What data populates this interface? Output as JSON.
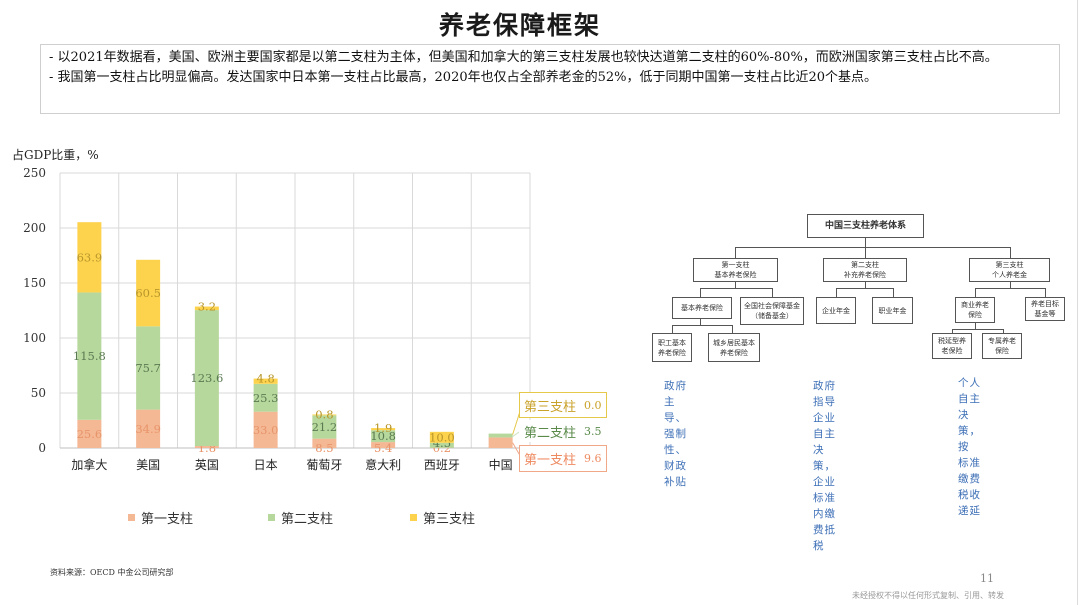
{
  "slide": {
    "title": "养老保障框架",
    "bullets": [
      "- 以2021年数据看，美国、欧洲主要国家都是以第二支柱为主体，但美国和加拿大的第三支柱发展也较快达道第二支柱的60%-80%，而欧洲国家第三支柱占比不高。",
      "- 我国第一支柱占比明显偏高。发达国家中日本第一支柱占比最高，2020年也仅占全部养老金的52%，低于同期中国第一支柱占比近20个基点。"
    ],
    "source": "资料来源：OECD 中金公司研究部",
    "page_number": "11",
    "copyright": "未经授权不得以任何形式复制、引用、转发"
  },
  "chart_data": {
    "type": "bar",
    "stacked": true,
    "title": "",
    "ylabel": "占GDP比重，%",
    "xlabel": "",
    "ylim": [
      0,
      250
    ],
    "yticks": [
      0,
      50,
      100,
      150,
      200,
      250
    ],
    "grid": true,
    "legend_position": "bottom",
    "categories": [
      "加拿大",
      "美国",
      "英国",
      "日本",
      "葡萄牙",
      "意大利",
      "西班牙",
      "中国"
    ],
    "series": [
      {
        "name": "第一支柱",
        "color": "#f4b894",
        "label_color": "#e8946a",
        "values": [
          25.6,
          34.9,
          1.8,
          33.0,
          8.5,
          5.4,
          0.2,
          9.6
        ]
      },
      {
        "name": "第二支柱",
        "color": "#b7d89c",
        "label_color": "#5a7a52",
        "values": [
          115.8,
          75.7,
          123.6,
          25.3,
          21.2,
          10.8,
          4.5,
          3.5
        ]
      },
      {
        "name": "第三支柱",
        "color": "#fdd34e",
        "label_color": "#b8962a",
        "values": [
          63.9,
          60.5,
          3.2,
          4.8,
          0.8,
          1.9,
          10.0,
          0.0
        ]
      }
    ],
    "callouts": [
      {
        "label": "第三支柱",
        "value": "0.0",
        "border": "#e6c84a",
        "color": "#c9a22a"
      },
      {
        "label": "第二支柱",
        "value": "3.5",
        "border": "#ffffff",
        "color": "#5a8a4a"
      },
      {
        "label": "第一支柱",
        "value": "9.6",
        "border": "#f0a888",
        "color": "#ee8a60"
      }
    ]
  },
  "org_chart": {
    "root": "中国三支柱养老体系",
    "pillars": [
      {
        "line1": "第一支柱",
        "line2": "基本养老保险"
      },
      {
        "line1": "第二支柱",
        "line2": "补充养老保险"
      },
      {
        "line1": "第三支柱",
        "line2": "个人养老金"
      }
    ],
    "p1_children": [
      {
        "line1": "基本养老保险",
        "line2": ""
      },
      {
        "line1": "全国社会保障基金",
        "line2": "（储备基金）"
      }
    ],
    "p1_grandchildren": [
      {
        "line1": "职工基本",
        "line2": "养老保险"
      },
      {
        "line1": "城乡居民基本",
        "line2": "养老保险"
      }
    ],
    "p2_children": [
      {
        "line1": "企业年金",
        "line2": ""
      },
      {
        "line1": "职业年金",
        "line2": ""
      }
    ],
    "p3_children": [
      {
        "line1": "商业养老",
        "line2": "保险"
      },
      {
        "line1": "养老目标",
        "line2": "基金等"
      }
    ],
    "p3_grandchildren": [
      {
        "line1": "税延型养",
        "line2": "老保险"
      },
      {
        "line1": "专属养老",
        "line2": "保险"
      }
    ],
    "notes": [
      {
        "line1": "政府主导、强制性、",
        "line2": "财政补贴"
      },
      {
        "line1": "政府指导企业自主决策，",
        "line2": "企业标准内缴费抵税"
      },
      {
        "line1": "个人自主决策，按",
        "line2": "标准缴费税收递延"
      }
    ]
  }
}
